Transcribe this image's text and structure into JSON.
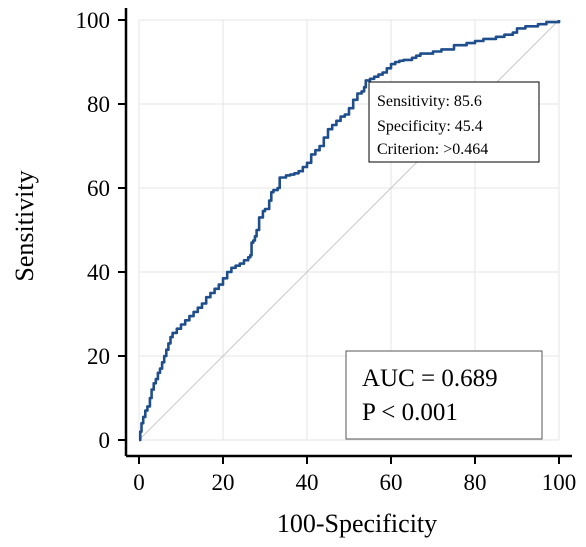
{
  "chart_data": {
    "type": "line",
    "title": "",
    "xlabel": "100-Specificity",
    "ylabel": "Sensitivity",
    "xlim": [
      0,
      100
    ],
    "ylim": [
      0,
      100
    ],
    "x_ticks": [
      "0",
      "20",
      "40",
      "60",
      "80",
      "100"
    ],
    "y_ticks": [
      "0",
      "20",
      "40",
      "60",
      "80",
      "100"
    ],
    "grid": true,
    "reference_line": true,
    "line_color": "#1f4e8c",
    "series": [
      {
        "values": [
          [
            0,
            0
          ],
          [
            0.3,
            2
          ],
          [
            0.6,
            4
          ],
          [
            1,
            5.5
          ],
          [
            1.5,
            7
          ],
          [
            2,
            8
          ],
          [
            2.6,
            10
          ],
          [
            3,
            12
          ],
          [
            3.5,
            13.5
          ],
          [
            4,
            14.5
          ],
          [
            4.5,
            16
          ],
          [
            5,
            17
          ],
          [
            5.5,
            18.5
          ],
          [
            6,
            20
          ],
          [
            6.5,
            21.5
          ],
          [
            7,
            23
          ],
          [
            7.5,
            24.5
          ],
          [
            8,
            25.5
          ],
          [
            9,
            26.5
          ],
          [
            10,
            27.5
          ],
          [
            11,
            28.5
          ],
          [
            12,
            29.5
          ],
          [
            13,
            30.5
          ],
          [
            14,
            31.5
          ],
          [
            15,
            32.5
          ],
          [
            16,
            34
          ],
          [
            17,
            35
          ],
          [
            18,
            36
          ],
          [
            19,
            37
          ],
          [
            20,
            38.5
          ],
          [
            21,
            40
          ],
          [
            22,
            41
          ],
          [
            23,
            41.5
          ],
          [
            24,
            42
          ],
          [
            25,
            42.8
          ],
          [
            26,
            43.5
          ],
          [
            26.5,
            44
          ],
          [
            26.8,
            47
          ],
          [
            27.2,
            47.5
          ],
          [
            27.6,
            48.5
          ],
          [
            28,
            50
          ],
          [
            28.6,
            53
          ],
          [
            29.5,
            54.5
          ],
          [
            30,
            55
          ],
          [
            31,
            57
          ],
          [
            31.5,
            59
          ],
          [
            32,
            59.5
          ],
          [
            33,
            60
          ],
          [
            33.5,
            62.5
          ],
          [
            35,
            63
          ],
          [
            36,
            63.2
          ],
          [
            37,
            63.5
          ],
          [
            38,
            64
          ],
          [
            39,
            65
          ],
          [
            40,
            66
          ],
          [
            41,
            68
          ],
          [
            42,
            69
          ],
          [
            43,
            70
          ],
          [
            44,
            72
          ],
          [
            45,
            74
          ],
          [
            46,
            75
          ],
          [
            47,
            76
          ],
          [
            48,
            77
          ],
          [
            49,
            77.5
          ],
          [
            50,
            79
          ],
          [
            51,
            81
          ],
          [
            52,
            82.5
          ],
          [
            53,
            83
          ],
          [
            53.6,
            84
          ],
          [
            54,
            85.6
          ],
          [
            55,
            86
          ],
          [
            56,
            86.5
          ],
          [
            57,
            87
          ],
          [
            58,
            87.5
          ],
          [
            59,
            88.5
          ],
          [
            60,
            89.5
          ],
          [
            61,
            90
          ],
          [
            62,
            90.3
          ],
          [
            63,
            90.5
          ],
          [
            65,
            91
          ],
          [
            66,
            91.5
          ],
          [
            67,
            92
          ],
          [
            70,
            92.5
          ],
          [
            72,
            93
          ],
          [
            75,
            94
          ],
          [
            78,
            94.5
          ],
          [
            80,
            95
          ],
          [
            82,
            95.5
          ],
          [
            85,
            96
          ],
          [
            87,
            96.5
          ],
          [
            89,
            97
          ],
          [
            90,
            98
          ],
          [
            92,
            98.5
          ],
          [
            95,
            99
          ],
          [
            97,
            99.5
          ],
          [
            100,
            100
          ]
        ]
      }
    ],
    "operating_point_box": {
      "lines": [
        "Sensitivity: 85.6",
        "Specificity: 45.4",
        "Criterion: >0.464"
      ]
    },
    "stats_box": {
      "lines": [
        "AUC = 0.689",
        "P < 0.001"
      ]
    }
  }
}
